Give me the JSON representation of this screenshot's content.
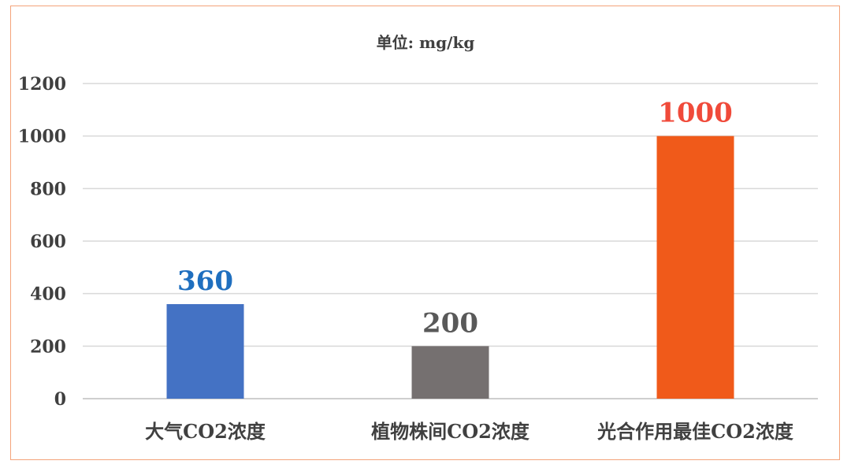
{
  "chart_data": {
    "type": "bar",
    "title": "单位: mg/kg",
    "categories": [
      "大气CO2浓度",
      "植物株间CO2浓度",
      "光合作用最佳CO2浓度"
    ],
    "values": [
      360,
      200,
      1000
    ],
    "data_labels": [
      "360",
      "200",
      "1000"
    ],
    "bar_colors": [
      "#4472c4",
      "#757070",
      "#f05a1a"
    ],
    "label_colors": [
      "#1f6fbf",
      "#595959",
      "#f04a3a"
    ],
    "ylim": [
      0,
      1200
    ],
    "yticks": [
      0,
      200,
      400,
      600,
      800,
      1000,
      1200
    ],
    "grid": true,
    "legend": "none"
  }
}
